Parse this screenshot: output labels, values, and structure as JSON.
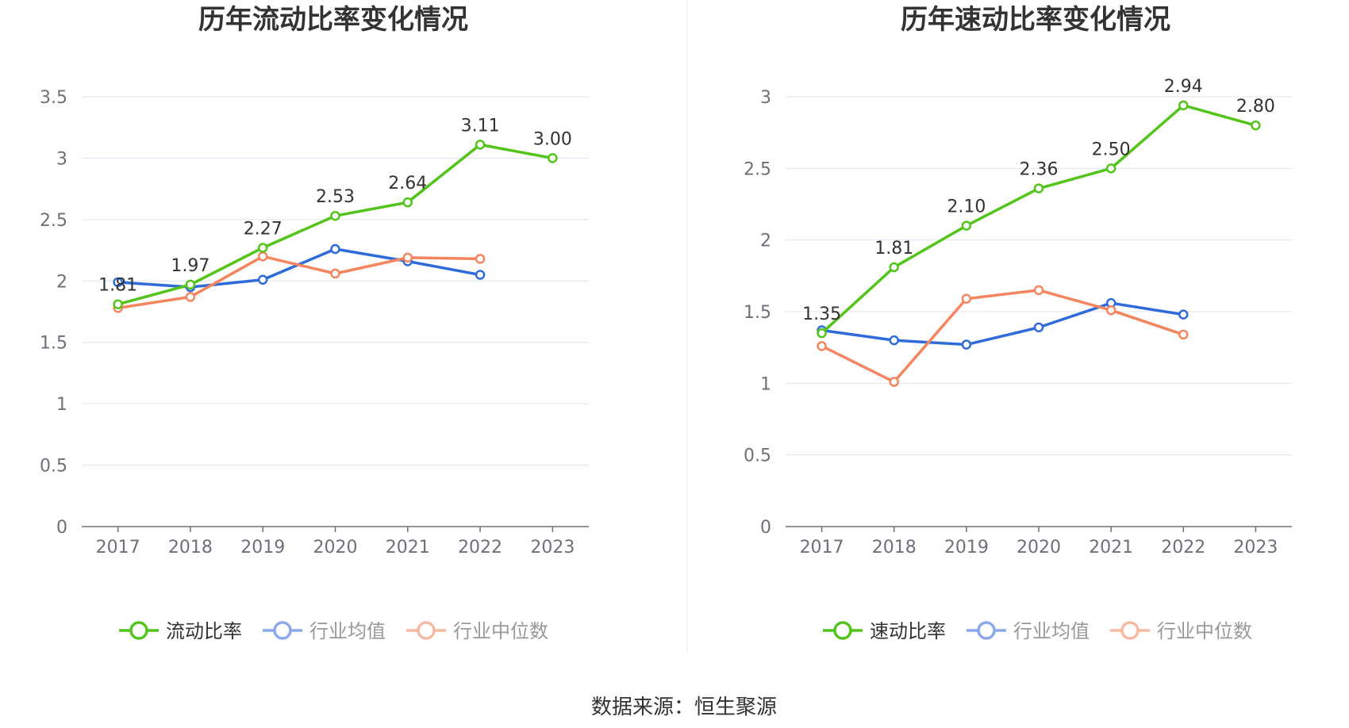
{
  "colors": {
    "main": "#52c41a",
    "avg": "#2f6bdb",
    "median": "#f5855e",
    "legend_avg": "#8aa8ec",
    "legend_median": "#f8b9a2",
    "grid": "#dfe3ee",
    "axis": "#6e7079"
  },
  "source": "数据来源：恒生聚源",
  "chart_data": [
    {
      "type": "line",
      "title": "历年流动比率变化情况",
      "categories": [
        "2017",
        "2018",
        "2019",
        "2020",
        "2021",
        "2022",
        "2023"
      ],
      "ylim": [
        0,
        3.5
      ],
      "yticks": [
        "0",
        "0.5",
        "1",
        "1.5",
        "2",
        "2.5",
        "3",
        "3.5"
      ],
      "grid": true,
      "legend_position": "bottom",
      "series": [
        {
          "name": "流动比率",
          "values": [
            1.81,
            1.97,
            2.27,
            2.53,
            2.64,
            3.11,
            3.0
          ],
          "labels": [
            "1.81",
            "1.97",
            "2.27",
            "2.53",
            "2.64",
            "3.11",
            "3.00"
          ]
        },
        {
          "name": "行业均值",
          "values": [
            1.99,
            1.95,
            2.01,
            2.26,
            2.16,
            2.05,
            null
          ]
        },
        {
          "name": "行业中位数",
          "values": [
            1.78,
            1.87,
            2.2,
            2.06,
            2.19,
            2.18,
            null
          ]
        }
      ]
    },
    {
      "type": "line",
      "title": "历年速动比率变化情况",
      "categories": [
        "2017",
        "2018",
        "2019",
        "2020",
        "2021",
        "2022",
        "2023"
      ],
      "ylim": [
        0,
        3
      ],
      "yticks": [
        "0",
        "0.5",
        "1",
        "1.5",
        "2",
        "2.5",
        "3"
      ],
      "grid": true,
      "legend_position": "bottom",
      "series": [
        {
          "name": "速动比率",
          "values": [
            1.35,
            1.81,
            2.1,
            2.36,
            2.5,
            2.94,
            2.8
          ],
          "labels": [
            "1.35",
            "1.81",
            "2.10",
            "2.36",
            "2.50",
            "2.94",
            "2.80"
          ]
        },
        {
          "name": "行业均值",
          "values": [
            1.37,
            1.3,
            1.27,
            1.39,
            1.56,
            1.48,
            null
          ]
        },
        {
          "name": "行业中位数",
          "values": [
            1.26,
            1.01,
            1.59,
            1.65,
            1.51,
            1.34,
            null
          ]
        }
      ]
    }
  ]
}
